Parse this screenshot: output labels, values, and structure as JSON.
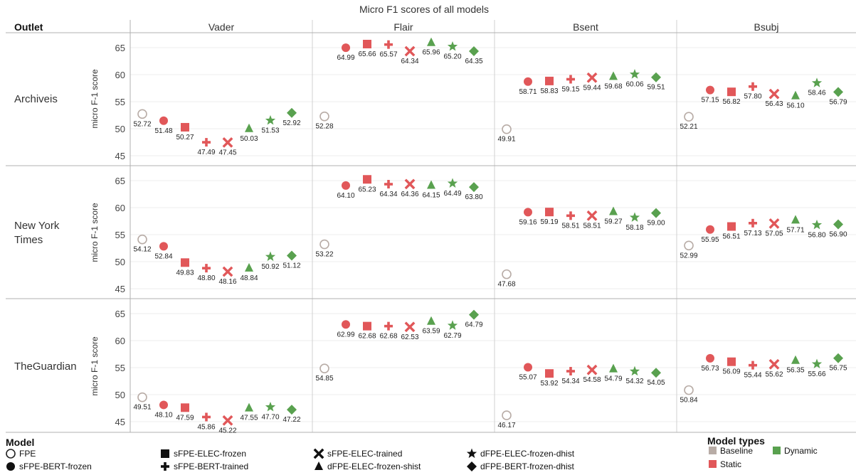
{
  "chart_data": {
    "type": "scatter",
    "title": "Micro F1 scores of all models",
    "row_header": "Outlet",
    "ylabel": "micro F-1 score",
    "ylim": [
      44,
      67
    ],
    "yticks": [
      45,
      50,
      55,
      60,
      65
    ],
    "columns": [
      "Vader",
      "Flair",
      "Bsent",
      "Bsubj"
    ],
    "rows": [
      "Archiveis",
      "New York Times",
      "TheGuardian"
    ],
    "models": [
      "FPE",
      "sFPE-BERT-frozen",
      "sFPE-ELEC-frozen",
      "sFPE-BERT-trained",
      "sFPE-ELEC-trained",
      "dFPE-ELEC-frozen-shist",
      "dFPE-ELEC-frozen-dhist",
      "dFPE-BERT-frozen-dhist"
    ],
    "model_types": [
      "Baseline",
      "Static",
      "Static",
      "Static",
      "Static",
      "Dynamic",
      "Dynamic",
      "Dynamic"
    ],
    "values": [
      [
        [
          52.72,
          51.48,
          50.27,
          47.49,
          47.45,
          50.03,
          51.53,
          52.92
        ],
        [
          52.28,
          64.99,
          65.66,
          65.57,
          64.34,
          65.96,
          65.2,
          64.35
        ],
        [
          49.91,
          58.71,
          58.83,
          59.15,
          59.44,
          59.68,
          60.06,
          59.51
        ],
        [
          52.21,
          57.15,
          56.82,
          57.8,
          56.43,
          56.1,
          58.46,
          56.79
        ]
      ],
      [
        [
          54.12,
          52.84,
          49.83,
          48.8,
          48.16,
          48.84,
          50.92,
          51.12
        ],
        [
          53.22,
          64.1,
          65.23,
          64.34,
          64.36,
          64.15,
          64.49,
          63.8
        ],
        [
          47.68,
          59.16,
          59.19,
          58.51,
          58.51,
          59.27,
          58.18,
          59.0
        ],
        [
          52.99,
          55.95,
          56.51,
          57.13,
          57.05,
          57.71,
          56.8,
          56.9
        ]
      ],
      [
        [
          49.51,
          48.1,
          47.59,
          45.86,
          45.22,
          47.55,
          47.7,
          47.22
        ],
        [
          54.85,
          62.99,
          62.68,
          62.68,
          62.53,
          63.59,
          62.79,
          64.79
        ],
        [
          46.17,
          55.07,
          53.92,
          54.34,
          54.58,
          54.79,
          54.32,
          54.05
        ],
        [
          50.84,
          56.73,
          56.09,
          55.44,
          55.62,
          56.35,
          55.66,
          56.75
        ]
      ]
    ],
    "legend": {
      "model_title": "Model",
      "model_entries": [
        {
          "name": "FPE",
          "marker": "circle-open"
        },
        {
          "name": "sFPE-BERT-frozen",
          "marker": "circle"
        },
        {
          "name": "sFPE-ELEC-frozen",
          "marker": "square"
        },
        {
          "name": "sFPE-BERT-trained",
          "marker": "plus"
        },
        {
          "name": "sFPE-ELEC-trained",
          "marker": "cross"
        },
        {
          "name": "dFPE-ELEC-frozen-shist",
          "marker": "triangle"
        },
        {
          "name": "dFPE-ELEC-frozen-dhist",
          "marker": "star"
        },
        {
          "name": "dFPE-BERT-frozen-dhist",
          "marker": "diamond"
        }
      ],
      "type_title": "Model types",
      "type_entries": [
        {
          "name": "Baseline",
          "color": "#b8aca6"
        },
        {
          "name": "Static",
          "color": "#e15759"
        },
        {
          "name": "Dynamic",
          "color": "#59a14f"
        }
      ]
    },
    "colors": {
      "Baseline": "#b8aca6",
      "Static": "#e15759",
      "Dynamic": "#59a14f"
    },
    "grid": true,
    "legend_position": "bottom"
  }
}
